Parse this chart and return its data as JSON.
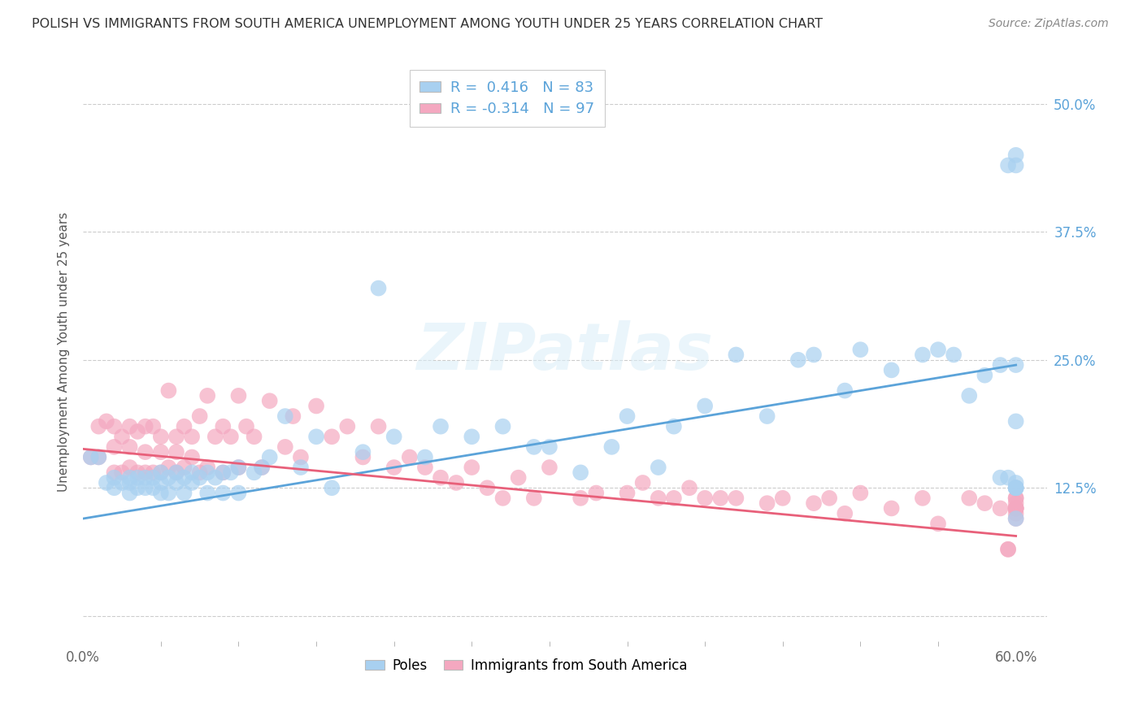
{
  "title": "POLISH VS IMMIGRANTS FROM SOUTH AMERICA UNEMPLOYMENT AMONG YOUTH UNDER 25 YEARS CORRELATION CHART",
  "source": "Source: ZipAtlas.com",
  "ylabel": "Unemployment Among Youth under 25 years",
  "xlim": [
    0.0,
    0.62
  ],
  "ylim": [
    -0.025,
    0.54
  ],
  "yticks": [
    0.0,
    0.125,
    0.25,
    0.375,
    0.5
  ],
  "ytick_labels": [
    "",
    "12.5%",
    "25.0%",
    "37.5%",
    "50.0%"
  ],
  "blue_R": 0.416,
  "blue_N": 83,
  "pink_R": -0.314,
  "pink_N": 97,
  "blue_color": "#A8D0F0",
  "pink_color": "#F4A8C0",
  "blue_line_color": "#5BA3D9",
  "pink_line_color": "#E8607A",
  "legend_label_blue": "Poles",
  "legend_label_pink": "Immigrants from South America",
  "blue_trend_y0": 0.095,
  "blue_trend_y1": 0.245,
  "pink_trend_y0": 0.163,
  "pink_trend_y1": 0.078,
  "background_color": "#ffffff",
  "grid_color": "#cccccc",
  "title_color": "#333333",
  "right_ytick_color": "#5BA3D9",
  "blue_scatter": {
    "x": [
      0.005,
      0.01,
      0.015,
      0.02,
      0.02,
      0.025,
      0.03,
      0.03,
      0.03,
      0.035,
      0.035,
      0.04,
      0.04,
      0.045,
      0.045,
      0.05,
      0.05,
      0.05,
      0.055,
      0.055,
      0.06,
      0.06,
      0.065,
      0.065,
      0.07,
      0.07,
      0.075,
      0.08,
      0.08,
      0.085,
      0.09,
      0.09,
      0.095,
      0.1,
      0.1,
      0.11,
      0.115,
      0.12,
      0.13,
      0.14,
      0.15,
      0.16,
      0.18,
      0.19,
      0.2,
      0.22,
      0.23,
      0.25,
      0.27,
      0.29,
      0.3,
      0.32,
      0.34,
      0.35,
      0.37,
      0.38,
      0.4,
      0.42,
      0.44,
      0.46,
      0.47,
      0.49,
      0.5,
      0.52,
      0.54,
      0.55,
      0.56,
      0.57,
      0.58,
      0.59,
      0.59,
      0.595,
      0.595,
      0.6,
      0.6,
      0.6,
      0.6,
      0.6,
      0.6,
      0.6,
      0.6,
      0.6,
      0.6
    ],
    "y": [
      0.155,
      0.155,
      0.13,
      0.135,
      0.125,
      0.13,
      0.135,
      0.13,
      0.12,
      0.135,
      0.125,
      0.135,
      0.125,
      0.135,
      0.125,
      0.14,
      0.13,
      0.12,
      0.135,
      0.12,
      0.14,
      0.13,
      0.135,
      0.12,
      0.14,
      0.13,
      0.135,
      0.14,
      0.12,
      0.135,
      0.14,
      0.12,
      0.14,
      0.145,
      0.12,
      0.14,
      0.145,
      0.155,
      0.195,
      0.145,
      0.175,
      0.125,
      0.16,
      0.32,
      0.175,
      0.155,
      0.185,
      0.175,
      0.185,
      0.165,
      0.165,
      0.14,
      0.165,
      0.195,
      0.145,
      0.185,
      0.205,
      0.255,
      0.195,
      0.25,
      0.255,
      0.22,
      0.26,
      0.24,
      0.255,
      0.26,
      0.255,
      0.215,
      0.235,
      0.245,
      0.135,
      0.135,
      0.44,
      0.45,
      0.44,
      0.245,
      0.19,
      0.095,
      0.13,
      0.125,
      0.125,
      0.125,
      0.125
    ]
  },
  "pink_scatter": {
    "x": [
      0.005,
      0.01,
      0.01,
      0.015,
      0.02,
      0.02,
      0.02,
      0.025,
      0.025,
      0.03,
      0.03,
      0.03,
      0.035,
      0.035,
      0.04,
      0.04,
      0.04,
      0.045,
      0.045,
      0.05,
      0.05,
      0.05,
      0.055,
      0.055,
      0.06,
      0.06,
      0.06,
      0.065,
      0.065,
      0.07,
      0.07,
      0.075,
      0.075,
      0.08,
      0.08,
      0.085,
      0.09,
      0.09,
      0.095,
      0.1,
      0.1,
      0.105,
      0.11,
      0.115,
      0.12,
      0.13,
      0.135,
      0.14,
      0.15,
      0.16,
      0.17,
      0.18,
      0.19,
      0.2,
      0.21,
      0.22,
      0.23,
      0.24,
      0.25,
      0.26,
      0.27,
      0.28,
      0.29,
      0.3,
      0.32,
      0.33,
      0.35,
      0.36,
      0.37,
      0.38,
      0.39,
      0.4,
      0.41,
      0.42,
      0.44,
      0.45,
      0.47,
      0.48,
      0.49,
      0.5,
      0.52,
      0.54,
      0.55,
      0.57,
      0.58,
      0.59,
      0.595,
      0.595,
      0.6,
      0.6,
      0.6,
      0.6,
      0.6,
      0.6,
      0.6,
      0.6,
      0.6
    ],
    "y": [
      0.155,
      0.185,
      0.155,
      0.19,
      0.185,
      0.165,
      0.14,
      0.175,
      0.14,
      0.185,
      0.165,
      0.145,
      0.18,
      0.14,
      0.185,
      0.16,
      0.14,
      0.185,
      0.14,
      0.175,
      0.16,
      0.14,
      0.22,
      0.145,
      0.175,
      0.16,
      0.14,
      0.185,
      0.145,
      0.175,
      0.155,
      0.195,
      0.14,
      0.215,
      0.145,
      0.175,
      0.185,
      0.14,
      0.175,
      0.215,
      0.145,
      0.185,
      0.175,
      0.145,
      0.21,
      0.165,
      0.195,
      0.155,
      0.205,
      0.175,
      0.185,
      0.155,
      0.185,
      0.145,
      0.155,
      0.145,
      0.135,
      0.13,
      0.145,
      0.125,
      0.115,
      0.135,
      0.115,
      0.145,
      0.115,
      0.12,
      0.12,
      0.13,
      0.115,
      0.115,
      0.125,
      0.115,
      0.115,
      0.115,
      0.11,
      0.115,
      0.11,
      0.115,
      0.1,
      0.12,
      0.105,
      0.115,
      0.09,
      0.115,
      0.11,
      0.105,
      0.065,
      0.065,
      0.11,
      0.115,
      0.105,
      0.105,
      0.1,
      0.115,
      0.105,
      0.105,
      0.095
    ]
  }
}
